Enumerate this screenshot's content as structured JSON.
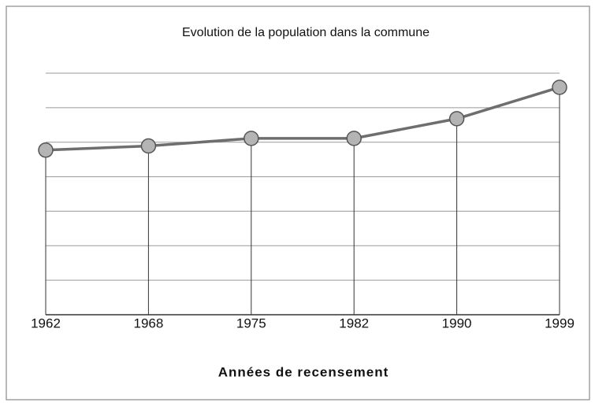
{
  "chart_data": {
    "type": "line",
    "title": "Evolution de la population dans la commune",
    "x_label": "Années de recensement",
    "categories": [
      "1962",
      "1968",
      "1975",
      "1982",
      "1990",
      "1999"
    ],
    "values": [
      4.77,
      4.89,
      5.11,
      5.11,
      5.68,
      6.59
    ],
    "color": "#6e6e6e",
    "marker_color": "#b4b4b4",
    "ylim": [
      0,
      7
    ],
    "yticks": [
      0,
      1,
      2,
      3,
      4,
      5,
      6,
      7
    ],
    "grid": true,
    "drop_lines": true
  }
}
